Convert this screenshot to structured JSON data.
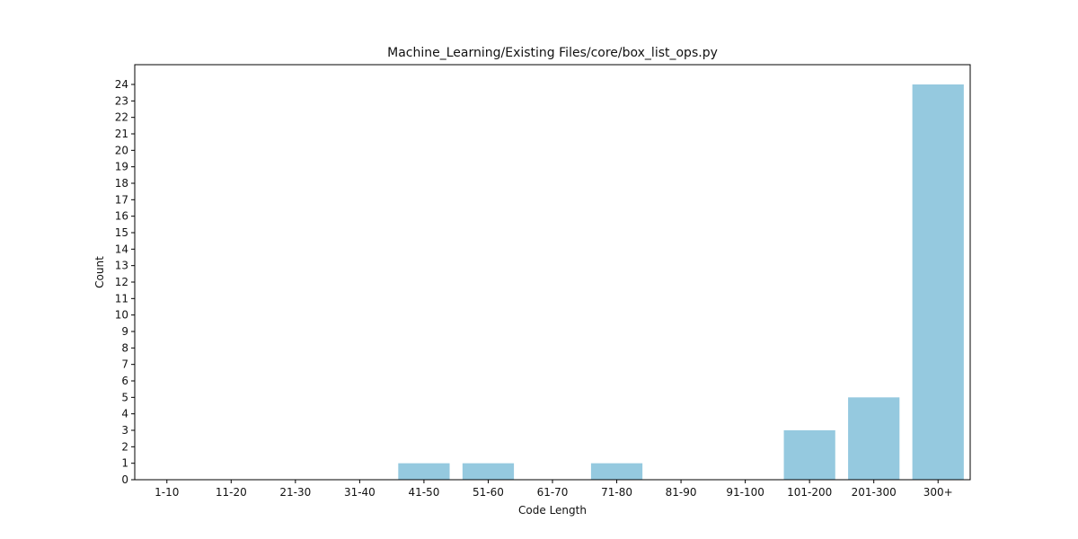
{
  "colors": {
    "bar": "#95c9df",
    "axis": "#000000",
    "background": "#ffffff"
  },
  "chart_data": {
    "type": "bar",
    "title": "Machine_Learning/Existing Files/core/box_list_ops.py",
    "xlabel": "Code Length",
    "ylabel": "Count",
    "categories": [
      "1-10",
      "11-20",
      "21-30",
      "31-40",
      "41-50",
      "51-60",
      "61-70",
      "71-80",
      "81-90",
      "91-100",
      "101-200",
      "201-300",
      "300+"
    ],
    "values": [
      0,
      0,
      0,
      0,
      1,
      1,
      0,
      1,
      0,
      0,
      3,
      5,
      24
    ],
    "yticks": [
      0,
      1,
      2,
      3,
      4,
      5,
      6,
      7,
      8,
      9,
      10,
      11,
      12,
      13,
      14,
      15,
      16,
      17,
      18,
      19,
      20,
      21,
      22,
      23,
      24
    ],
    "ylim": [
      0,
      25.2
    ],
    "grid": false,
    "legend": false
  }
}
